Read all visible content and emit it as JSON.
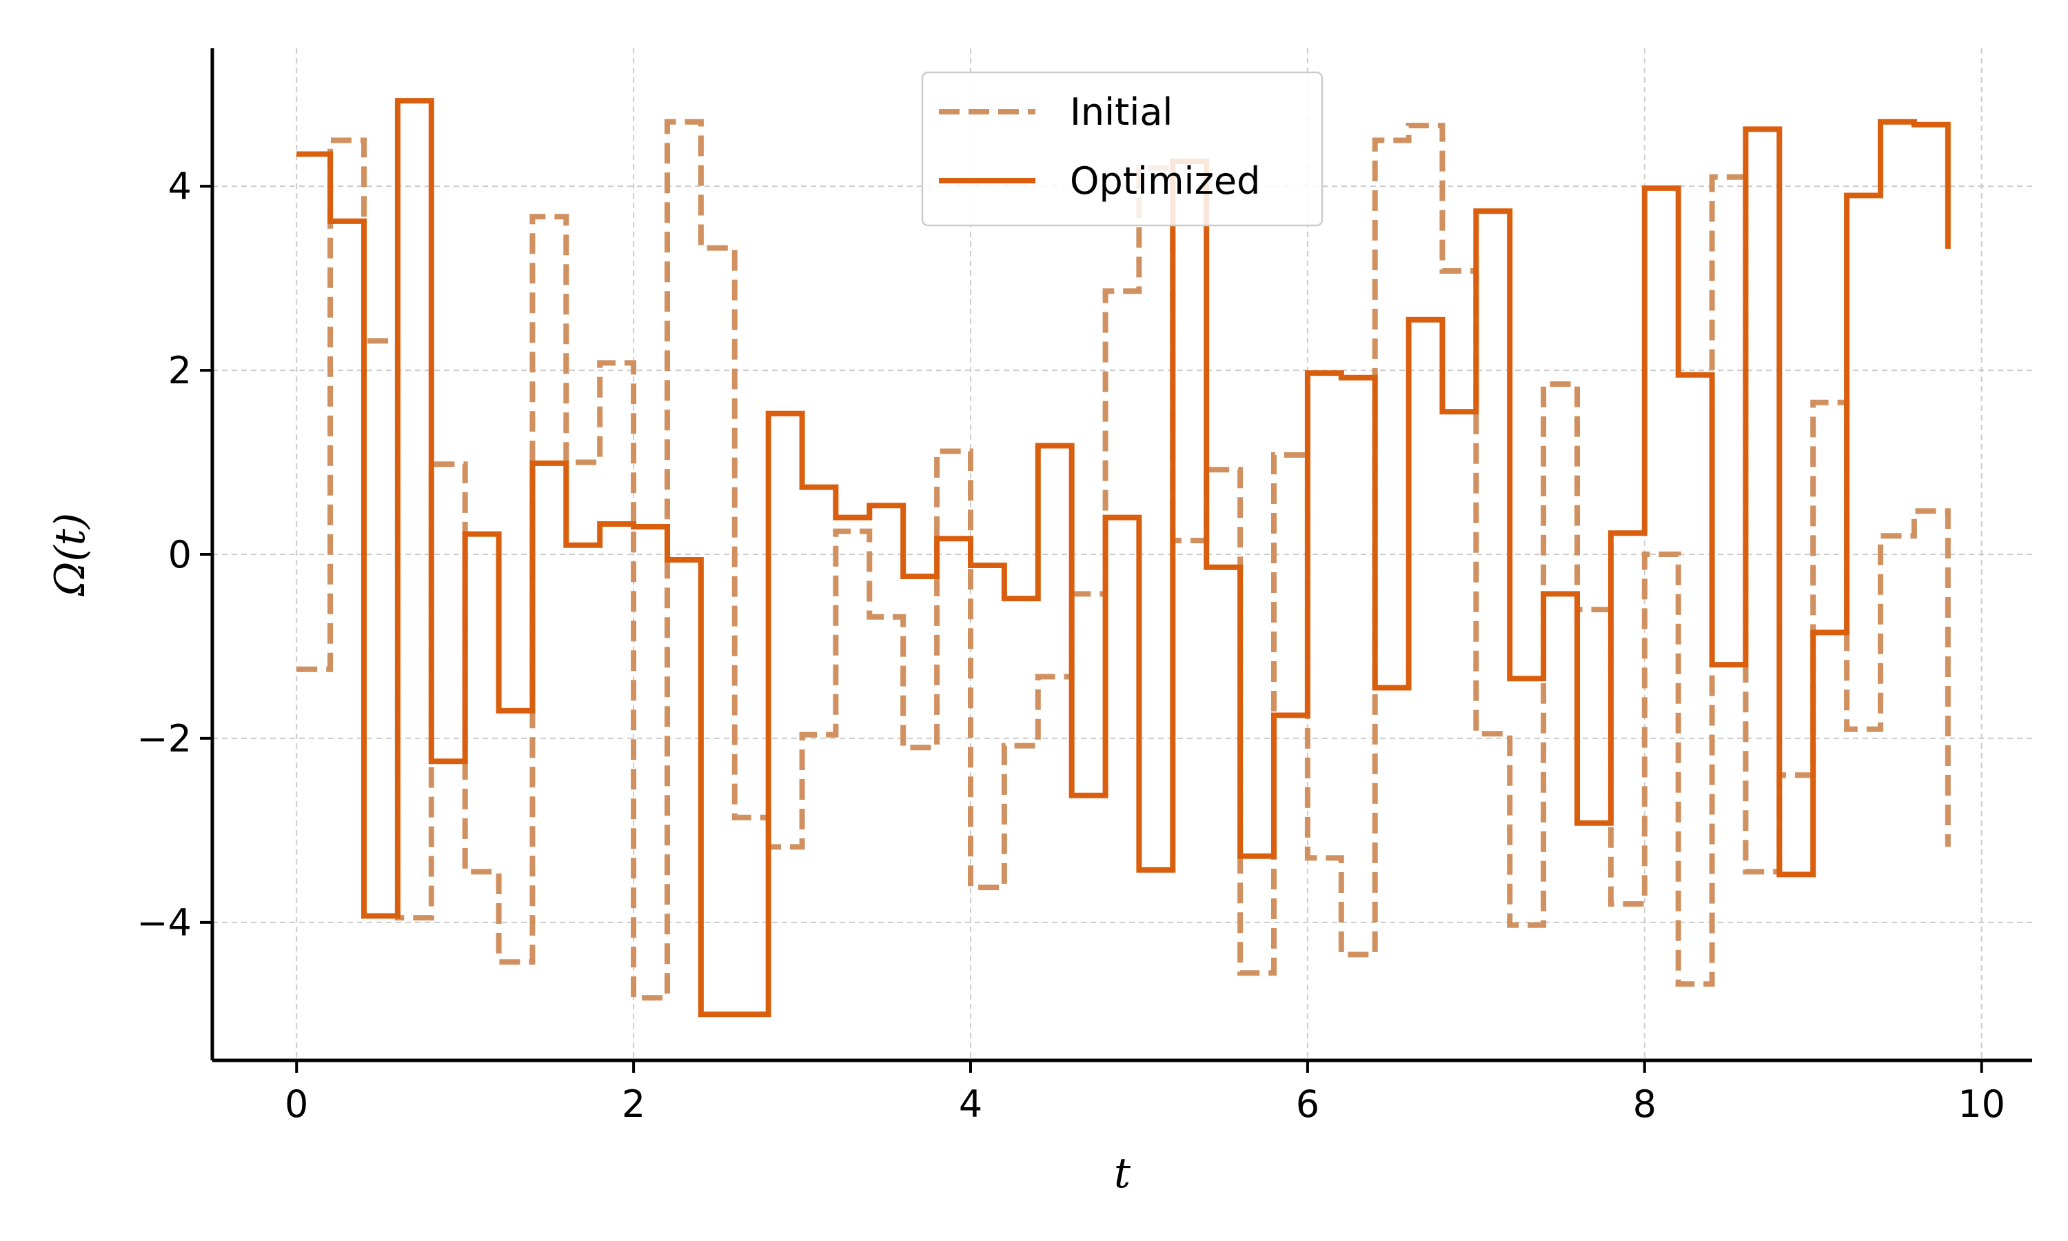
{
  "chart_data": {
    "type": "line",
    "step": "post",
    "xlabel": "t",
    "ylabel": "Ω(t)",
    "xlim": [
      -0.5,
      10.3
    ],
    "ylim": [
      -5.5,
      5.5
    ],
    "xticks": [
      0,
      2,
      4,
      6,
      8,
      10
    ],
    "xtick_labels": [
      "0",
      "2",
      "4",
      "6",
      "8",
      "10"
    ],
    "yticks": [
      -4,
      -2,
      0,
      2,
      4
    ],
    "ytick_labels": [
      "−4",
      "−2",
      "0",
      "2",
      "4"
    ],
    "grid": true,
    "legend_position": "top-center",
    "x": [
      0,
      0.2,
      0.4,
      0.6,
      0.8,
      1.0,
      1.2,
      1.4,
      1.6,
      1.8,
      2.0,
      2.2,
      2.4,
      2.6,
      2.8,
      3.0,
      3.2,
      3.4,
      3.6,
      3.8,
      4.0,
      4.2,
      4.4,
      4.6,
      4.8,
      5.0,
      5.2,
      5.4,
      5.6,
      5.8,
      6.0,
      6.2,
      6.4,
      6.6,
      6.8,
      7.0,
      7.2,
      7.4,
      7.6,
      7.8,
      8.0,
      8.2,
      8.4,
      8.6,
      8.8,
      9.0,
      9.2,
      9.4,
      9.6,
      9.8
    ],
    "series": [
      {
        "name": "Initial",
        "color": "#D0905F",
        "style": "dashed",
        "values": [
          -1.25,
          4.5,
          2.32,
          -3.95,
          0.98,
          -3.45,
          -4.43,
          3.67,
          1.0,
          2.08,
          -4.82,
          4.7,
          3.33,
          -2.86,
          -3.18,
          -1.96,
          0.25,
          -0.68,
          -2.1,
          1.12,
          -3.62,
          -2.08,
          -1.33,
          -0.43,
          2.86,
          4.2,
          0.15,
          0.92,
          -4.55,
          1.08,
          -3.3,
          -4.35,
          4.5,
          4.66,
          3.08,
          -1.95,
          -4.03,
          1.85,
          -0.6,
          -3.8,
          0.0,
          -4.67,
          4.1,
          -3.45,
          -2.4,
          1.65,
          -1.9,
          0.2,
          0.47,
          -3.18
        ]
      },
      {
        "name": "Optimized",
        "color": "#D95F0E",
        "style": "solid",
        "values": [
          4.35,
          3.62,
          -3.93,
          4.93,
          -2.25,
          0.22,
          -1.7,
          0.99,
          0.1,
          0.33,
          0.3,
          -0.06,
          -5.0,
          -5.0,
          1.53,
          0.73,
          0.4,
          0.53,
          -0.24,
          0.17,
          -0.12,
          -0.48,
          1.18,
          -2.62,
          0.4,
          -3.43,
          4.27,
          -0.14,
          -3.28,
          -1.75,
          1.97,
          1.92,
          -1.45,
          2.55,
          1.55,
          3.73,
          -1.35,
          -0.43,
          -2.92,
          0.23,
          3.98,
          1.95,
          -1.2,
          4.62,
          -3.48,
          -0.85,
          3.9,
          4.7,
          4.67,
          3.32
        ]
      }
    ]
  }
}
